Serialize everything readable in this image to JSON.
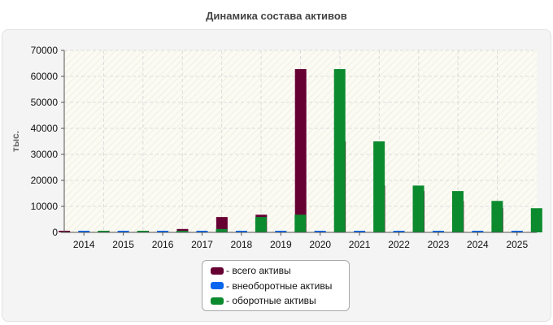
{
  "chart_data": {
    "type": "bar",
    "title": "Динамика состава активов",
    "ylabel": "тыс.",
    "xlabel": "",
    "ylim": [
      0,
      70000
    ],
    "yticks": [
      0,
      10000,
      20000,
      30000,
      40000,
      50000,
      60000,
      70000
    ],
    "grid": true,
    "legend_position": "bottom",
    "categories": [
      "2014",
      "2015",
      "2016",
      "2017",
      "2018",
      "2019",
      "2020",
      "2021",
      "2022",
      "2023",
      "2024",
      "2025"
    ],
    "series": [
      {
        "name": "всего активы",
        "color": "#660033",
        "values": [
          200,
          250,
          300,
          1300,
          5900,
          6800,
          62800,
          35000,
          18000,
          15900,
          12100,
          9300
        ]
      },
      {
        "name": "внеоборотные активы",
        "color": "#0a66ee",
        "values": [
          0,
          0,
          0,
          0,
          0,
          0,
          0,
          0,
          0,
          0,
          0,
          0
        ]
      },
      {
        "name": "оборотные активы",
        "color": "#0b8a2e",
        "values": [
          200,
          250,
          300,
          1300,
          5900,
          6800,
          62800,
          35000,
          18000,
          15900,
          12100,
          9300
        ]
      }
    ]
  }
}
